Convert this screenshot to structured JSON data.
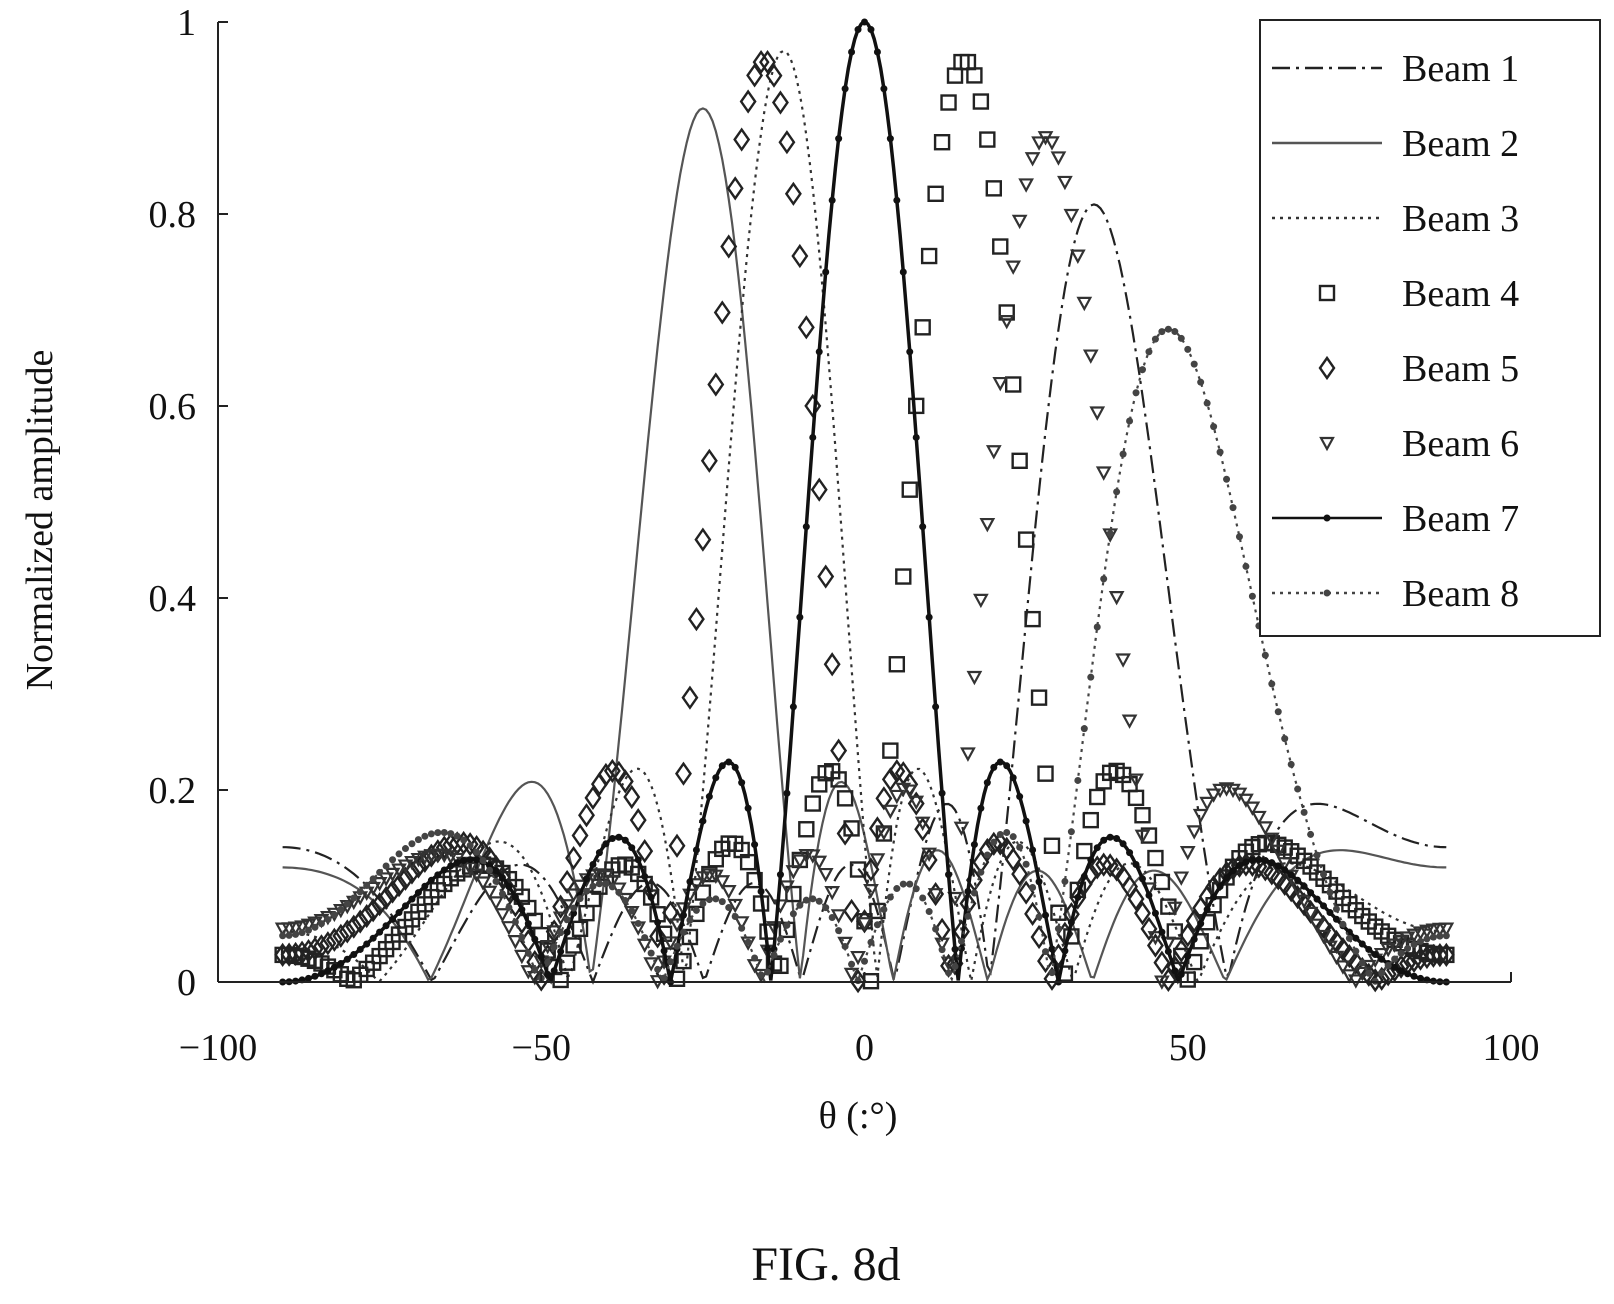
{
  "caption": "FIG. 8d",
  "chart_data": {
    "type": "line",
    "title": "",
    "xlabel": "θ (:°)",
    "ylabel": "Normalized amplitude",
    "xlim": [
      -100,
      100
    ],
    "ylim": [
      0,
      1
    ],
    "xticks": [
      -100,
      -50,
      0,
      50,
      100
    ],
    "xtick_labels": [
      "−100",
      "−50",
      "0",
      "50",
      "100"
    ],
    "yticks": [
      0,
      0.2,
      0.4,
      0.6,
      0.8,
      1
    ],
    "ytick_labels": [
      "0",
      "0.2",
      "0.4",
      "0.6",
      "0.8",
      "1"
    ],
    "grid": false,
    "legend_position": "top-right",
    "elements": 8,
    "half_spacing": 0.5,
    "series": [
      {
        "name": "Beam 1",
        "style": "dashdot",
        "marker": "none",
        "peak_angle": 35.5,
        "peak_value": 0.81,
        "color": "#222222"
      },
      {
        "name": "Beam 2",
        "style": "solid",
        "marker": "none",
        "peak_angle": -25,
        "peak_value": 0.91,
        "color": "#555555"
      },
      {
        "name": "Beam 3",
        "style": "dotted",
        "marker": "none",
        "peak_angle": -12.5,
        "peak_value": 0.97,
        "color": "#333333"
      },
      {
        "name": "Beam 4",
        "style": "none",
        "marker": "square",
        "peak_angle": 15.5,
        "peak_value": 0.96,
        "color": "#222222"
      },
      {
        "name": "Beam 5",
        "style": "none",
        "marker": "diamond",
        "peak_angle": -15.5,
        "peak_value": 0.96,
        "color": "#222222"
      },
      {
        "name": "Beam 6",
        "style": "none",
        "marker": "triangle-down",
        "peak_angle": 28,
        "peak_value": 0.88,
        "color": "#333333"
      },
      {
        "name": "Beam 7",
        "style": "solid",
        "marker": "dot",
        "peak_angle": 0,
        "peak_value": 1.0,
        "color": "#111111"
      },
      {
        "name": "Beam 8",
        "style": "dotted",
        "marker": "dot",
        "peak_angle": 47,
        "peak_value": 0.68,
        "color": "#444444"
      }
    ]
  }
}
